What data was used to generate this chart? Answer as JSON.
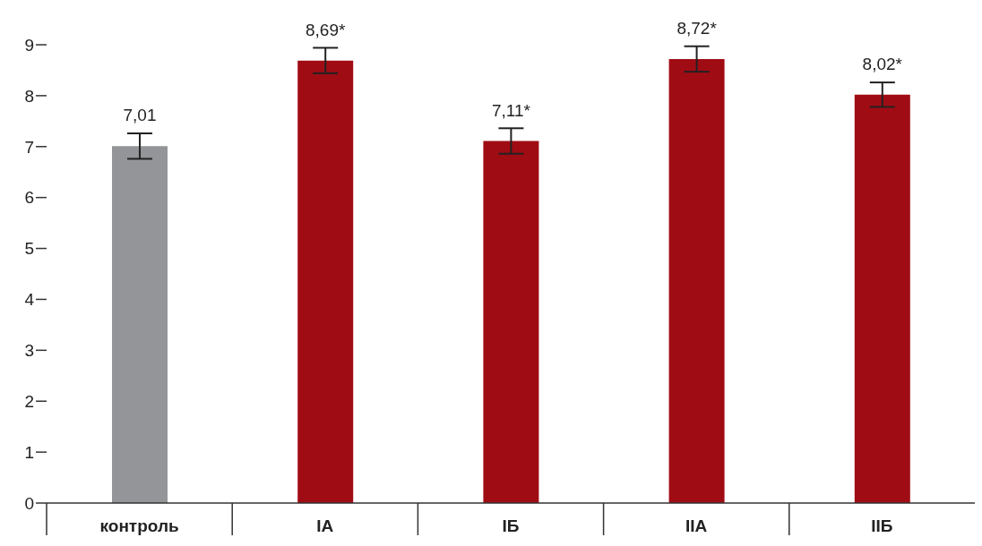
{
  "chart_data": {
    "type": "bar",
    "categories": [
      "контроль",
      "IA",
      "IБ",
      "IIA",
      "IIБ"
    ],
    "values": [
      7.01,
      8.69,
      7.11,
      8.72,
      8.02
    ],
    "colors": [
      "#939598",
      "#a00c14",
      "#a00c14",
      "#a00c14",
      "#a00c14"
    ],
    "errors": [
      0.25,
      0.25,
      0.25,
      0.25,
      0.24
    ],
    "value_labels": [
      "7,01",
      "8,69*",
      "7,11*",
      "8,72*",
      "8,02*"
    ],
    "ylim": [
      0,
      9
    ],
    "yticks": [
      0,
      1,
      2,
      3,
      4,
      5,
      6,
      7,
      8,
      9
    ],
    "grid": false,
    "legend": false
  }
}
